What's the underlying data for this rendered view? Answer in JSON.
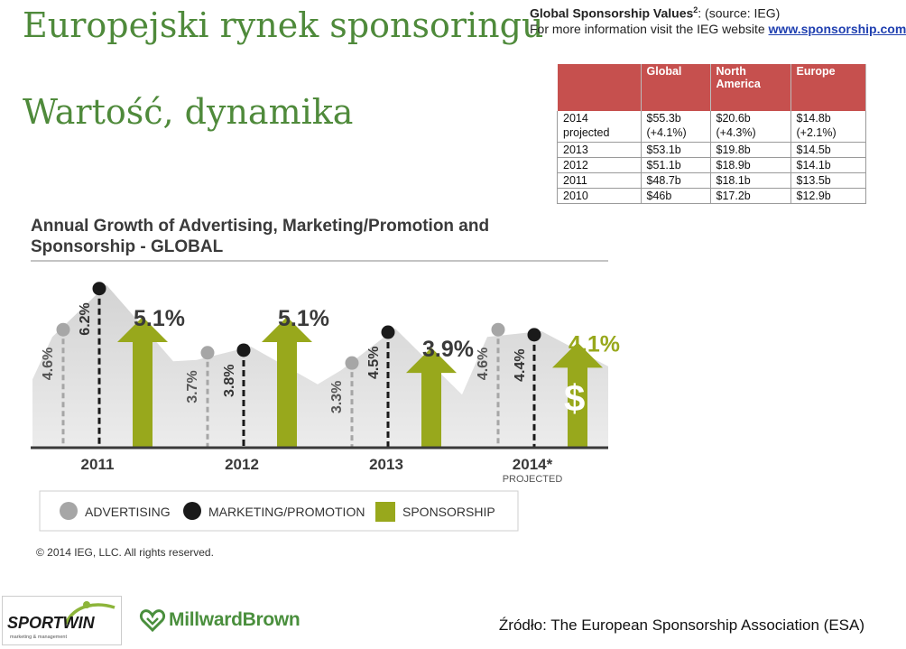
{
  "slide": {
    "title": "Europejski rynek sponsoringu",
    "subtitle": "Wartość, dynamika",
    "source_note": "Źródło: The European Sponsorship Association (ESA)"
  },
  "ieg_table": {
    "heading": "Global Sponsorship Values",
    "heading_sup": "2",
    "heading_source": ": (source: IEG)",
    "info_text": "For more information visit the IEG website ",
    "info_link": "www.sponsorship.com",
    "columns": [
      "",
      "Global",
      "North America",
      "Europe"
    ],
    "rows": [
      {
        "year": "2014 projected",
        "global": "$55.3b (+4.1%)",
        "north_america": "$20.6b (+4.3%)",
        "europe": "$14.8b (+2.1%)"
      },
      {
        "year": "2013",
        "global": "$53.1b",
        "north_america": "$19.8b",
        "europe": "$14.5b"
      },
      {
        "year": "2012",
        "global": "$51.1b",
        "north_america": "$18.9b",
        "europe": "$14.1b"
      },
      {
        "year": "2011",
        "global": "$48.7b",
        "north_america": "$18.1b",
        "europe": "$13.5b"
      },
      {
        "year": "2010",
        "global": "$46b",
        "north_america": "$17.2b",
        "europe": "$12.9b"
      }
    ],
    "header_color": "#c6504e"
  },
  "chart_data": {
    "type": "bar",
    "title_line1": "Annual Growth of Advertising, Marketing/Promotion and",
    "title_line2": "Sponsorship - GLOBAL",
    "categories": [
      "2011",
      "2012",
      "2013",
      "2014*"
    ],
    "category_sublabels": [
      "",
      "",
      "",
      "PROJECTED"
    ],
    "series": [
      {
        "name": "ADVERTISING",
        "values": [
          4.6,
          3.7,
          3.3,
          4.6
        ],
        "labels": [
          "4.6%",
          "3.7%",
          "3.3%",
          "4.6%"
        ],
        "color": "#a6a6a6"
      },
      {
        "name": "MARKETING/PROMOTION",
        "values": [
          6.2,
          3.8,
          4.5,
          4.4
        ],
        "labels": [
          "6.2%",
          "3.8%",
          "4.5%",
          "4.4%"
        ],
        "color": "#1a1a1a"
      },
      {
        "name": "SPONSORSHIP",
        "values": [
          5.1,
          5.1,
          3.9,
          4.1
        ],
        "labels": [
          "5.1%",
          "5.1%",
          "3.9%",
          "4.1%"
        ],
        "color": "#98a81c"
      }
    ],
    "dollar_symbol": "$",
    "copyright": "© 2014 IEG, LLC. All rights reserved."
  },
  "logos": {
    "sportwin_text": "SPORTWIN",
    "sportwin_tagline": "marketing & management",
    "millward_text": "MillwardBrown"
  }
}
